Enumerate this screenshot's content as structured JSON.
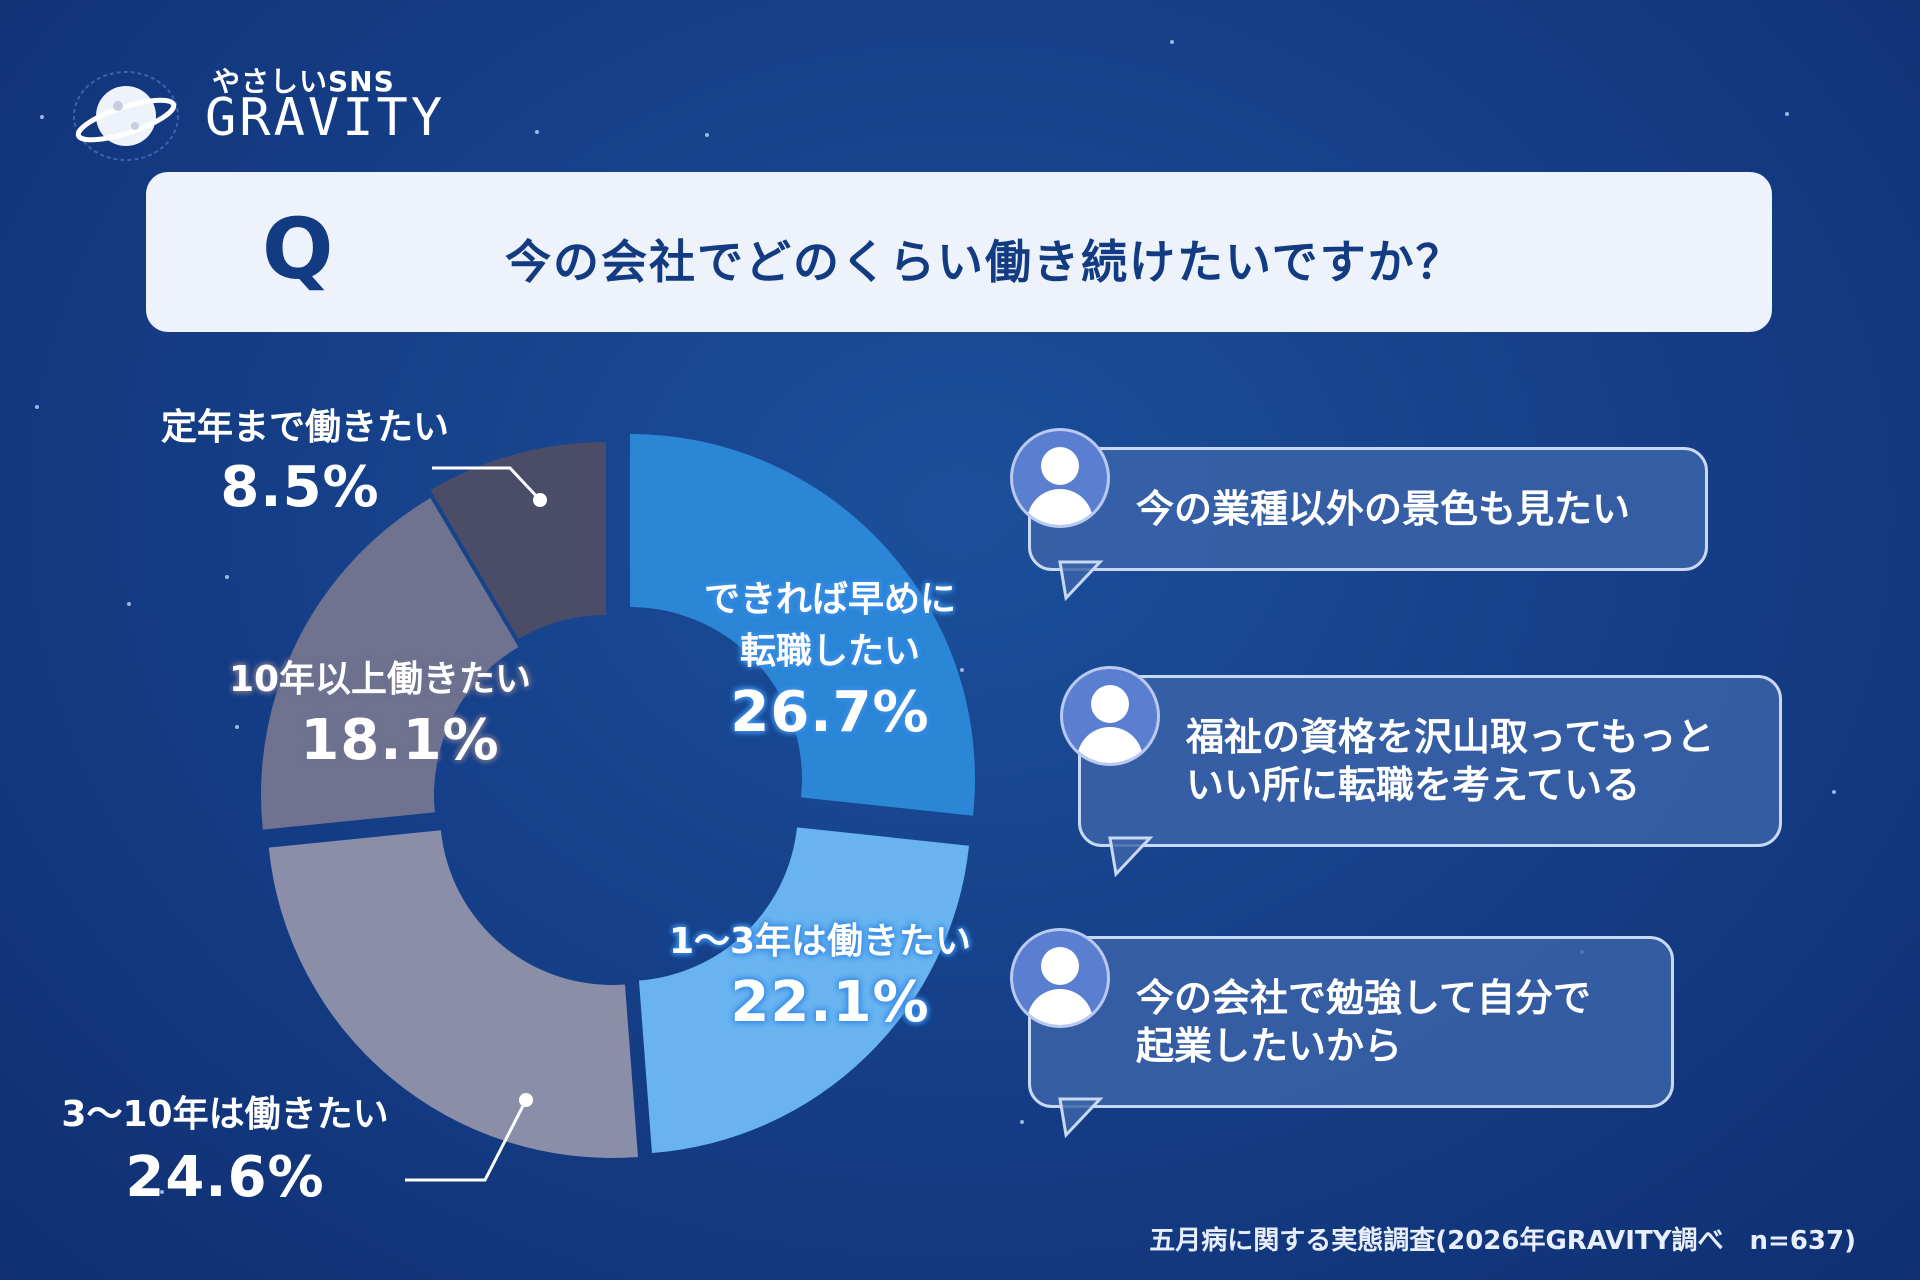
{
  "logo": {
    "sub": "やさしいSNS",
    "main": "GRAVITY"
  },
  "question": {
    "mark": "Q",
    "text": "今の会社でどのくらい働き続けたいですか？"
  },
  "colors": {
    "slice_early": "#2b86d6",
    "slice_1_3": "#69b4f0",
    "slice_3_10": "#8a8ea8",
    "slice_10plus": "#6f7390",
    "slice_retire": "#4b4c68"
  },
  "chart_data": {
    "type": "pie",
    "style": "donut",
    "slices": [
      {
        "label_line1": "できれば早めに",
        "label_line2": "転職したい",
        "label": "できれば早めに転職したい",
        "value": 26.7,
        "display": "26.7%"
      },
      {
        "label": "1〜3年は働きたい",
        "value": 22.1,
        "display": "22.1%"
      },
      {
        "label": "3〜10年は働きたい",
        "value": 24.6,
        "display": "24.6%"
      },
      {
        "label": "10年以上働きたい",
        "value": 18.1,
        "display": "18.1%"
      },
      {
        "label": "定年まで働きたい",
        "value": 8.5,
        "display": "8.5%"
      }
    ]
  },
  "comments": [
    {
      "line1": "今の業種以外の景色も見たい",
      "line2": ""
    },
    {
      "line1": "福祉の資格を沢山取ってもっと",
      "line2": "いい所に転職を考えている"
    },
    {
      "line1": "今の会社で勉強して自分で",
      "line2": "起業したいから"
    }
  ],
  "source": "五月病に関する実態調査(2026年GRAVITY調べ　n=637)"
}
